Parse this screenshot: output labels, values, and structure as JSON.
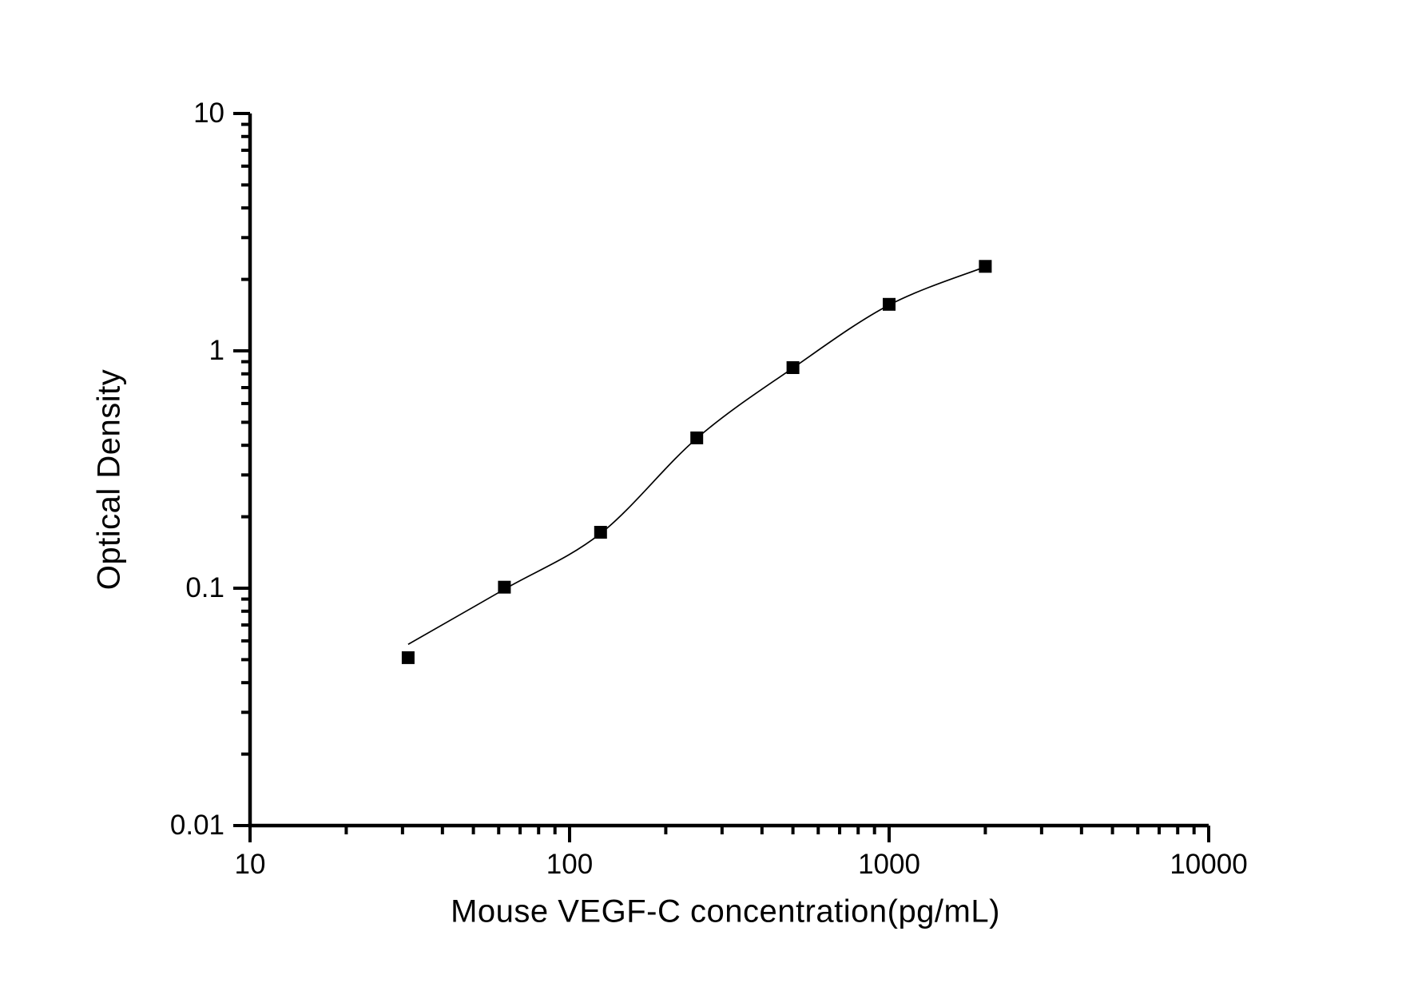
{
  "chart_data": {
    "type": "scatter",
    "title": "",
    "xlabel": "Mouse VEGF-C concentration(pg/mL)",
    "ylabel": "Optical Density",
    "x_scale": "log",
    "y_scale": "log",
    "xlim": [
      10,
      10000
    ],
    "ylim": [
      0.01,
      10
    ],
    "grid": false,
    "legend": false,
    "x_ticks": [
      {
        "value": 10,
        "label": "10"
      },
      {
        "value": 100,
        "label": "100"
      },
      {
        "value": 1000,
        "label": "1000"
      },
      {
        "value": 10000,
        "label": "10000"
      }
    ],
    "y_ticks": [
      {
        "value": 0.01,
        "label": "0.01"
      },
      {
        "value": 0.1,
        "label": "0.1"
      },
      {
        "value": 1,
        "label": "1"
      },
      {
        "value": 10,
        "label": "10"
      }
    ],
    "series": [
      {
        "name": "standards",
        "marker": "filled-square",
        "concentration_pg_ml": [
          31.25,
          62.5,
          125,
          250,
          500,
          1000,
          2000
        ],
        "optical_density": [
          0.051,
          0.101,
          0.172,
          0.43,
          0.85,
          1.57,
          2.27
        ]
      }
    ],
    "fit_curve": {
      "points": [
        [
          31.25,
          0.058
        ],
        [
          62.5,
          0.099
        ],
        [
          125,
          0.17
        ],
        [
          250,
          0.428
        ],
        [
          500,
          0.847
        ],
        [
          1000,
          1.56
        ],
        [
          2000,
          2.26
        ]
      ]
    },
    "colors": {
      "line": "#000000",
      "marker": "#000000",
      "axis": "#000000",
      "background": "#ffffff"
    }
  }
}
